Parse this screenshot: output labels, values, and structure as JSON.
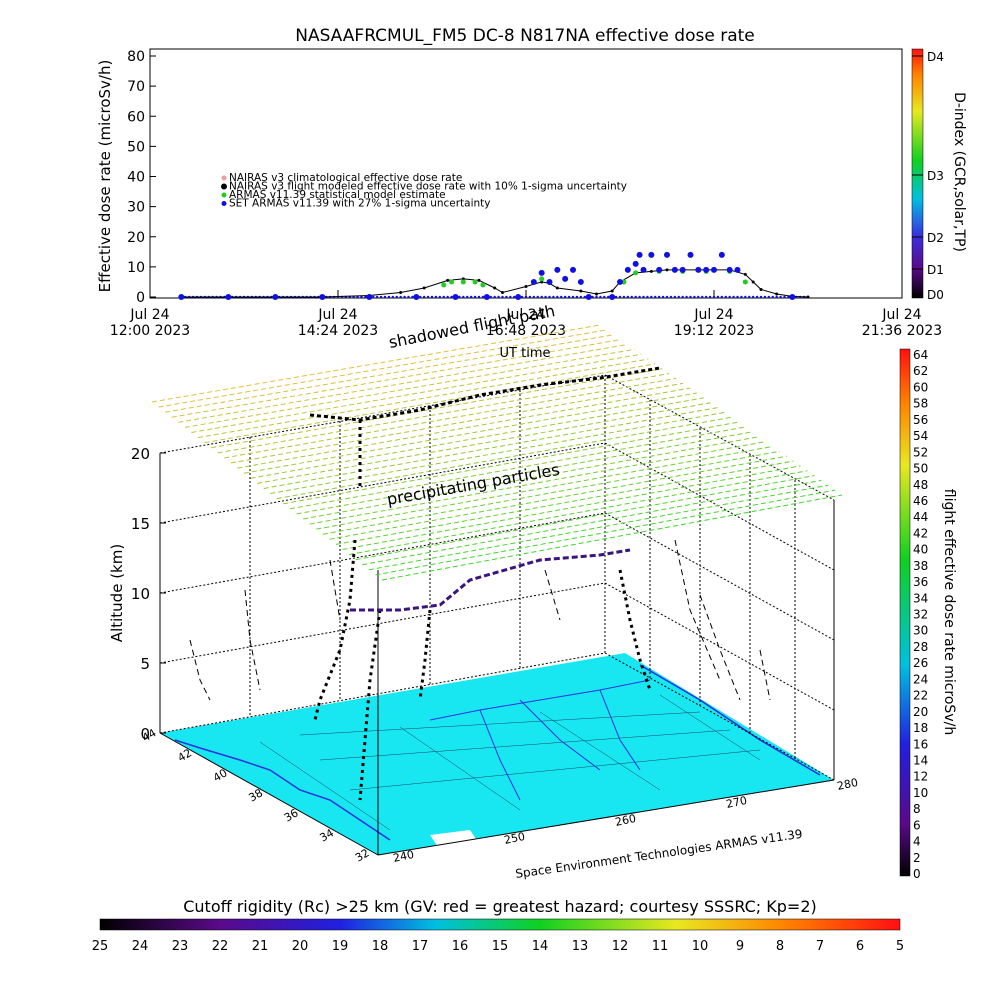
{
  "chart_data": [
    {
      "type": "scatter",
      "title": "NASAAFRCMUL_FM5 DC-8   N817NA effective dose rate",
      "ylabel": "Effective dose rate (microSv/h)",
      "xlabel": "UT time",
      "ylim": [
        0,
        80
      ],
      "y_ticks": [
        "0",
        "10",
        "20",
        "30",
        "40",
        "50",
        "60",
        "70",
        "80"
      ],
      "x_ticks": [
        {
          "line1": "Jul 24",
          "line2": "12:00 2023"
        },
        {
          "line1": "Jul 24",
          "line2": "14:24 2023"
        },
        {
          "line1": "Jul 24",
          "line2": "16:48 2023"
        },
        {
          "line1": "Jul 24",
          "line2": "19:12 2023"
        },
        {
          "line1": "Jul 24",
          "line2": "21:36 2023"
        }
      ],
      "xlim_hours": [
        12.0,
        21.6
      ],
      "right_axis": {
        "label": "D-index (GCR,solar,TP)",
        "ticks": [
          "D0",
          "D1",
          "D2",
          "D3",
          "D4"
        ]
      },
      "legend": [
        {
          "text": "NAIRAS v3 climatological effective dose rate",
          "color": "#e8a0a0"
        },
        {
          "text": "NAIRAS v3 flight modeled effective dose rate with 10% 1-sigma uncertainty",
          "color": "#000000"
        },
        {
          "text": "ARMAS v11.39 statistical model estimate",
          "color": "#22cc22"
        },
        {
          "text": "SET ARMAS v11.39 with 27% 1-sigma uncertainty",
          "color": "#1010e0"
        }
      ],
      "series": [
        {
          "name": "NAIRAS v3 flight modeled effective dose rate with 10% 1-sigma uncertainty",
          "x": [
            12.4,
            13.0,
            13.6,
            14.2,
            14.8,
            15.2,
            15.5,
            15.8,
            16.0,
            16.2,
            16.4,
            16.5,
            16.8,
            17.0,
            17.1,
            17.2,
            17.5,
            17.7,
            17.9,
            18.0,
            18.2,
            18.4,
            18.6,
            18.8,
            19.0,
            19.4,
            19.6,
            19.7,
            19.8,
            20.0,
            20.2,
            20.4
          ],
          "values": [
            0,
            0,
            0,
            0,
            0.5,
            1.5,
            3.0,
            5.5,
            6.0,
            5.5,
            3.0,
            1.5,
            3.5,
            5.0,
            4.5,
            3.0,
            2.0,
            1.0,
            2.0,
            5.0,
            8.0,
            8.5,
            9.0,
            9.0,
            9.0,
            9.0,
            7.5,
            5.0,
            2.5,
            1.0,
            0.2,
            0
          ]
        },
        {
          "name": "ARMAS v11.39 statistical model estimate",
          "x": [
            15.75,
            15.85,
            16.0,
            16.15,
            16.25,
            16.9,
            17.0,
            17.3,
            17.5,
            18.05,
            18.2,
            18.5,
            18.8,
            19.1,
            19.4,
            19.6
          ],
          "values": [
            4,
            5,
            5,
            5,
            4,
            5,
            6,
            6,
            5,
            5,
            8,
            8.5,
            8.5,
            8.5,
            8.5,
            5
          ]
        },
        {
          "name": "SET ARMAS v11.39 with 27% 1-sigma uncertainty",
          "x": [
            12.4,
            13.0,
            13.6,
            14.2,
            14.8,
            15.4,
            15.9,
            16.3,
            16.7,
            16.9,
            17.0,
            17.1,
            17.2,
            17.3,
            17.4,
            17.5,
            17.6,
            17.9,
            18.0,
            18.1,
            18.2,
            18.25,
            18.3,
            18.4,
            18.5,
            18.6,
            18.7,
            18.8,
            18.9,
            19.0,
            19.1,
            19.2,
            19.3,
            19.4,
            19.5,
            20.2
          ],
          "values": [
            0,
            0,
            0,
            0,
            0,
            0,
            0,
            0,
            0,
            5,
            8,
            5,
            9,
            6,
            9,
            5,
            0,
            0,
            5,
            9,
            11,
            14,
            9,
            14,
            9,
            14,
            9,
            9,
            14,
            9,
            9,
            9,
            14,
            9,
            9,
            0
          ]
        }
      ]
    },
    {
      "type": "scatter",
      "subtype": "3d-flight-path",
      "zlabel": "Altitude (km)",
      "zlim": [
        0,
        20
      ],
      "z_ticks": [
        "0",
        "5",
        "10",
        "15",
        "20"
      ],
      "lat_ticks": [
        "44",
        "42",
        "40",
        "38",
        "36",
        "34",
        "32"
      ],
      "lon_ticks": [
        "240",
        "250",
        "260",
        "270",
        "280"
      ],
      "annotations": [
        "shadowed flight path",
        "precipitating particles",
        "UT time"
      ],
      "colorbar": {
        "label": "flight effective dose rate microSv/h",
        "ticks": [
          "0",
          "2",
          "4",
          "6",
          "8",
          "10",
          "12",
          "14",
          "16",
          "18",
          "20",
          "22",
          "24",
          "26",
          "28",
          "30",
          "32",
          "34",
          "36",
          "38",
          "40",
          "42",
          "44",
          "46",
          "48",
          "50",
          "52",
          "54",
          "56",
          "58",
          "60",
          "62",
          "64"
        ]
      },
      "credit": "Space Environment Technologies ARMAS v11.39"
    }
  ],
  "footer": {
    "title": "Cutoff rigidity (Rc) >25 km (GV: red = greatest hazard; courtesy SSSRC; Kp=2)",
    "ticks": [
      "25",
      "24",
      "23",
      "22",
      "21",
      "20",
      "19",
      "18",
      "17",
      "16",
      "15",
      "14",
      "13",
      "12",
      "11",
      "10",
      "9",
      "8",
      "7",
      "6",
      "5"
    ]
  },
  "colors": {
    "map": "#18e6f0",
    "nairas": "#000000",
    "armas": "#22cc22",
    "set": "#1010e0"
  }
}
